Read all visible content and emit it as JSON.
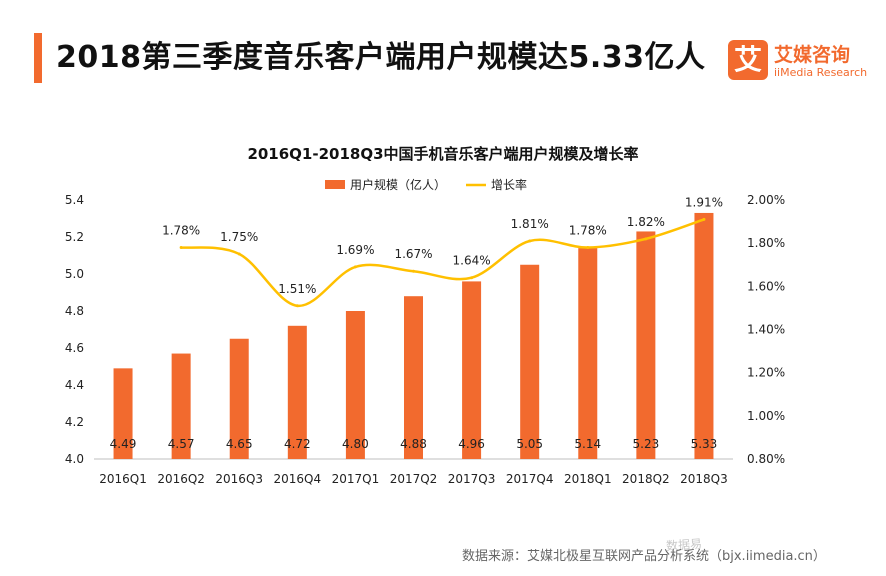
{
  "page": {
    "headline": "2018第三季度音乐客户端用户规模达5.33亿人",
    "accent_color": "#F26A2E"
  },
  "logo": {
    "mark": "艾",
    "name_cn": "艾媒咨询",
    "name_en": "iiMedia Research",
    "color": "#F26A2E"
  },
  "footer": {
    "source": "数据来源：艾媒北极星互联网产品分析系统（bjx.iimedia.cn）",
    "watermark": "数据易"
  },
  "chart_data": {
    "type": "bar",
    "title": "2016Q1-2018Q3中国手机音乐客户端用户规模及增长率",
    "categories": [
      "2016Q1",
      "2016Q2",
      "2016Q3",
      "2016Q4",
      "2017Q1",
      "2017Q2",
      "2017Q3",
      "2017Q4",
      "2018Q1",
      "2018Q2",
      "2018Q3"
    ],
    "series": [
      {
        "name": "用户规模（亿人）",
        "type": "bar",
        "axis": "left",
        "color": "#F26A2E",
        "values": [
          4.49,
          4.57,
          4.65,
          4.72,
          4.8,
          4.88,
          4.96,
          5.05,
          5.14,
          5.23,
          5.33
        ],
        "labels": [
          "4.49",
          "4.57",
          "4.65",
          "4.72",
          "4.80",
          "4.88",
          "4.96",
          "5.05",
          "5.14",
          "5.23",
          "5.33"
        ]
      },
      {
        "name": "增长率",
        "type": "line",
        "axis": "right",
        "color": "#FFC000",
        "smooth": true,
        "values": [
          null,
          1.78,
          1.75,
          1.51,
          1.69,
          1.67,
          1.64,
          1.81,
          1.78,
          1.82,
          1.91
        ],
        "labels": [
          "",
          "1.78%",
          "1.75%",
          "1.51%",
          "1.69%",
          "1.67%",
          "1.64%",
          "1.81%",
          "1.78%",
          "1.82%",
          "1.91%"
        ]
      }
    ],
    "y_left": {
      "min": 4.0,
      "max": 5.4,
      "ticks": [
        "4.0",
        "4.2",
        "4.4",
        "4.6",
        "4.8",
        "5.0",
        "5.2",
        "5.4"
      ]
    },
    "y_right": {
      "min": 0.8,
      "max": 2.0,
      "ticks": [
        "0.80%",
        "1.00%",
        "1.20%",
        "1.40%",
        "1.60%",
        "1.80%",
        "2.00%"
      ]
    },
    "legend_position": "top-center",
    "grid": false
  }
}
